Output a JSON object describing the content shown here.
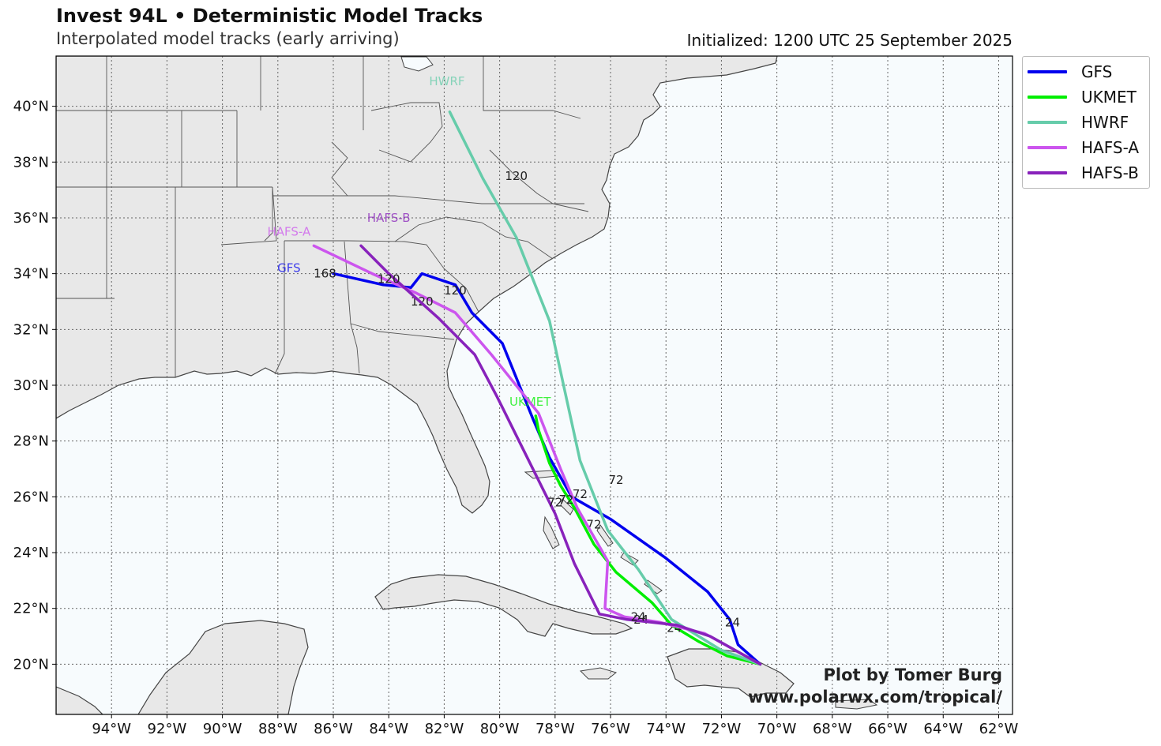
{
  "header": {
    "title": "Invest 94L • Deterministic Model Tracks",
    "subtitle": "Interpolated model tracks (early arriving)",
    "initialized": "Initialized: 1200 UTC 25 September 2025"
  },
  "credit": {
    "line1": "Plot by Tomer Burg",
    "line2": "www.polarwx.com/tropical/"
  },
  "axes": {
    "lon_labels": [
      "94°W",
      "92°W",
      "90°W",
      "88°W",
      "86°W",
      "84°W",
      "82°W",
      "80°W",
      "78°W",
      "76°W",
      "74°W",
      "72°W",
      "70°W",
      "68°W",
      "66°W",
      "64°W",
      "62°W"
    ],
    "lon_values": [
      -94,
      -92,
      -90,
      -88,
      -86,
      -84,
      -82,
      -80,
      -78,
      -76,
      -74,
      -72,
      -70,
      -68,
      -66,
      -64,
      -62
    ],
    "lat_labels": [
      "40°N",
      "38°N",
      "36°N",
      "34°N",
      "32°N",
      "30°N",
      "28°N",
      "26°N",
      "24°N",
      "22°N",
      "20°N"
    ],
    "lat_values": [
      40,
      38,
      36,
      34,
      32,
      30,
      28,
      26,
      24,
      22,
      20
    ],
    "lon_range": [
      -96,
      -61.5
    ],
    "lat_range": [
      18.2,
      41.8
    ],
    "grid": "dotted"
  },
  "colors": {
    "land": "#e8e8e8",
    "ocean": "#f7fbfd",
    "coast": "#444444",
    "border": "#555555"
  },
  "legend": [
    {
      "name": "GFS",
      "color": "#0000ee"
    },
    {
      "name": "UKMET",
      "color": "#00ee00"
    },
    {
      "name": "HWRF",
      "color": "#66ccaa"
    },
    {
      "name": "HAFS-A",
      "color": "#cc55ee"
    },
    {
      "name": "HAFS-B",
      "color": "#8822bb"
    }
  ],
  "tracks": [
    {
      "name": "GFS",
      "color": "#0000ee",
      "points": [
        [
          -70.6,
          20.0
        ],
        [
          -71.4,
          20.7
        ],
        [
          -71.7,
          21.6
        ],
        [
          -72.5,
          22.6
        ],
        [
          -74.0,
          23.8
        ],
        [
          -76.0,
          25.2
        ],
        [
          -77.4,
          26.0
        ],
        [
          -78.2,
          27.4
        ],
        [
          -78.8,
          28.8
        ],
        [
          -79.9,
          31.5
        ],
        [
          -81.0,
          32.6
        ],
        [
          -81.6,
          33.6
        ],
        [
          -82.8,
          34.0
        ],
        [
          -83.2,
          33.5
        ],
        [
          -84.2,
          33.6
        ],
        [
          -86.0,
          34.0
        ]
      ],
      "hour_labels": [
        {
          "text": "24",
          "lon": -71.6,
          "lat": 21.5
        },
        {
          "text": "72",
          "lon": -77.1,
          "lat": 26.1
        },
        {
          "text": "120",
          "lon": -81.6,
          "lat": 33.4
        },
        {
          "text": "168",
          "lon": -86.3,
          "lat": 34.0
        }
      ],
      "name_label": {
        "lon": -87.6,
        "lat": 34.2
      }
    },
    {
      "name": "UKMET",
      "color": "#00ee00",
      "points": [
        [
          -70.6,
          20.0
        ],
        [
          -71.8,
          20.3
        ],
        [
          -72.8,
          20.8
        ],
        [
          -73.8,
          21.4
        ],
        [
          -74.5,
          22.2
        ],
        [
          -75.8,
          23.3
        ],
        [
          -76.6,
          24.3
        ],
        [
          -77.3,
          25.6
        ],
        [
          -77.8,
          26.4
        ],
        [
          -78.2,
          27.2
        ],
        [
          -78.6,
          28.4
        ],
        [
          -78.7,
          28.9
        ]
      ],
      "hour_labels": [
        {
          "text": "24",
          "lon": -73.7,
          "lat": 21.3
        },
        {
          "text": "72",
          "lon": -76.6,
          "lat": 25.0
        }
      ],
      "name_label": {
        "lon": -78.9,
        "lat": 29.4
      }
    },
    {
      "name": "HWRF",
      "color": "#66ccaa",
      "points": [
        [
          -70.6,
          20.0
        ],
        [
          -72.0,
          20.5
        ],
        [
          -73.8,
          21.6
        ],
        [
          -75.0,
          23.4
        ],
        [
          -76.1,
          24.8
        ],
        [
          -77.1,
          27.3
        ],
        [
          -78.2,
          32.3
        ],
        [
          -79.4,
          35.3
        ],
        [
          -80.6,
          37.4
        ],
        [
          -81.8,
          39.8
        ]
      ],
      "hour_labels": [
        {
          "text": "72",
          "lon": -75.8,
          "lat": 26.6
        },
        {
          "text": "120",
          "lon": -79.4,
          "lat": 37.5
        }
      ],
      "name_label": {
        "lon": -81.9,
        "lat": 40.9
      }
    },
    {
      "name": "HAFS-A",
      "color": "#cc55ee",
      "points": [
        [
          -70.6,
          20.0
        ],
        [
          -72.6,
          21.1
        ],
        [
          -74.2,
          21.5
        ],
        [
          -75.5,
          21.7
        ],
        [
          -76.2,
          22.0
        ],
        [
          -76.1,
          23.7
        ],
        [
          -77.2,
          25.6
        ],
        [
          -77.8,
          27.0
        ],
        [
          -78.6,
          29.0
        ],
        [
          -80.3,
          31.1
        ],
        [
          -81.6,
          32.6
        ],
        [
          -83.0,
          33.3
        ],
        [
          -84.6,
          34.0
        ],
        [
          -86.7,
          35.0
        ]
      ],
      "hour_labels": [
        {
          "text": "24",
          "lon": -74.9,
          "lat": 21.6
        },
        {
          "text": "72",
          "lon": -77.6,
          "lat": 25.9
        },
        {
          "text": "120",
          "lon": -82.8,
          "lat": 33.0
        }
      ],
      "name_label": {
        "lon": -87.6,
        "lat": 35.5
      }
    },
    {
      "name": "HAFS-B",
      "color": "#8822bb",
      "points": [
        [
          -70.6,
          20.0
        ],
        [
          -72.4,
          21.0
        ],
        [
          -73.6,
          21.4
        ],
        [
          -75.4,
          21.6
        ],
        [
          -76.4,
          21.8
        ],
        [
          -77.3,
          23.6
        ],
        [
          -78.0,
          25.4
        ],
        [
          -79.1,
          27.6
        ],
        [
          -80.1,
          29.6
        ],
        [
          -80.9,
          31.1
        ],
        [
          -82.2,
          32.4
        ],
        [
          -83.1,
          33.2
        ],
        [
          -84.0,
          34.0
        ],
        [
          -85.0,
          35.0
        ]
      ],
      "hour_labels": [
        {
          "text": "24",
          "lon": -75.0,
          "lat": 21.7
        },
        {
          "text": "72",
          "lon": -78.0,
          "lat": 25.8
        },
        {
          "text": "120",
          "lon": -84.0,
          "lat": 33.8
        }
      ],
      "name_label": {
        "lon": -84.0,
        "lat": 36.0
      }
    }
  ]
}
